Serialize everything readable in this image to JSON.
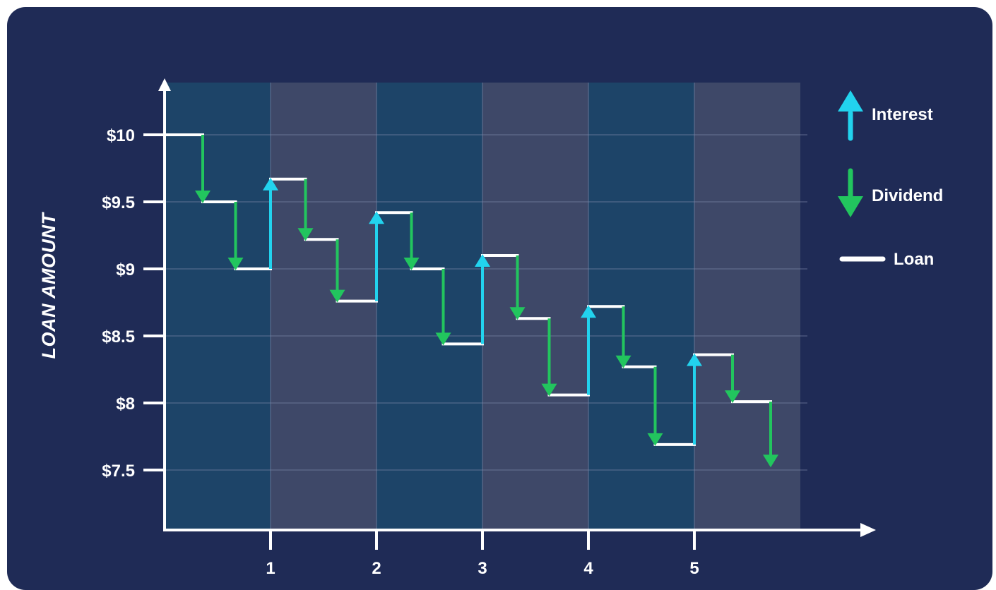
{
  "chart_data": {
    "type": "line",
    "ylabel": "LOAN AMOUNT",
    "y_ticks": [
      "$10",
      "$9.5",
      "$9",
      "$8.5",
      "$8",
      "$7.5"
    ],
    "y_tick_values": [
      10,
      9.5,
      9,
      8.5,
      8,
      7.5
    ],
    "x_ticks": [
      "1",
      "2",
      "3",
      "4",
      "5"
    ],
    "x_tick_values": [
      1,
      2,
      3,
      4,
      5
    ],
    "xlim": [
      0,
      6
    ],
    "ylim": [
      7.05,
      10.4
    ],
    "grid": true,
    "legend_position": "right",
    "colors": {
      "background": "#1f2b56",
      "band_a": "#1d4468",
      "band_b": "#3e4868",
      "interest": "#22d3ee",
      "dividend": "#22c55e",
      "loan": "#ffffff",
      "axis": "#ffffff",
      "grid": "#7a86a8"
    },
    "legend": [
      {
        "label": "Interest",
        "icon": "arrow-up-icon",
        "color": "#22d3ee"
      },
      {
        "label": "Dividend",
        "icon": "arrow-down-icon",
        "color": "#22c55e"
      },
      {
        "label": "Loan",
        "icon": "line-icon",
        "color": "#ffffff"
      }
    ],
    "series": [
      {
        "name": "Loan",
        "kind": "step",
        "segments": [
          {
            "x0": 0.0,
            "x1": 0.36,
            "y": 10.0
          },
          {
            "x0": 0.36,
            "x1": 0.67,
            "y": 9.5
          },
          {
            "x0": 0.67,
            "x1": 1.0,
            "y": 9.0
          },
          {
            "x0": 1.0,
            "x1": 1.33,
            "y": 9.67
          },
          {
            "x0": 1.33,
            "x1": 1.63,
            "y": 9.22
          },
          {
            "x0": 1.63,
            "x1": 2.0,
            "y": 8.76
          },
          {
            "x0": 2.0,
            "x1": 2.33,
            "y": 9.42
          },
          {
            "x0": 2.33,
            "x1": 2.63,
            "y": 9.0
          },
          {
            "x0": 2.63,
            "x1": 3.0,
            "y": 8.44
          },
          {
            "x0": 3.0,
            "x1": 3.33,
            "y": 9.1
          },
          {
            "x0": 3.33,
            "x1": 3.63,
            "y": 8.63
          },
          {
            "x0": 3.63,
            "x1": 4.0,
            "y": 8.06
          },
          {
            "x0": 4.0,
            "x1": 4.33,
            "y": 8.72
          },
          {
            "x0": 4.33,
            "x1": 4.63,
            "y": 8.27
          },
          {
            "x0": 4.63,
            "x1": 5.0,
            "y": 7.69
          },
          {
            "x0": 5.0,
            "x1": 5.36,
            "y": 8.36
          },
          {
            "x0": 5.36,
            "x1": 5.72,
            "y": 8.01
          }
        ]
      },
      {
        "name": "Interest",
        "kind": "up-arrow",
        "points": [
          {
            "x": 1.0,
            "from": 9.0,
            "to": 9.67
          },
          {
            "x": 2.0,
            "from": 8.76,
            "to": 9.42
          },
          {
            "x": 3.0,
            "from": 8.44,
            "to": 9.1
          },
          {
            "x": 4.0,
            "from": 8.06,
            "to": 8.72
          },
          {
            "x": 5.0,
            "from": 7.69,
            "to": 8.36
          }
        ]
      },
      {
        "name": "Dividend",
        "kind": "down-arrow",
        "points": [
          {
            "x": 0.36,
            "from": 10.0,
            "to": 9.5
          },
          {
            "x": 0.67,
            "from": 9.5,
            "to": 9.0
          },
          {
            "x": 1.33,
            "from": 9.67,
            "to": 9.22
          },
          {
            "x": 1.63,
            "from": 9.22,
            "to": 8.76
          },
          {
            "x": 2.33,
            "from": 9.42,
            "to": 9.0
          },
          {
            "x": 2.63,
            "from": 9.0,
            "to": 8.44
          },
          {
            "x": 3.33,
            "from": 9.1,
            "to": 8.63
          },
          {
            "x": 3.63,
            "from": 8.63,
            "to": 8.06
          },
          {
            "x": 4.33,
            "from": 8.72,
            "to": 8.27
          },
          {
            "x": 4.63,
            "from": 8.27,
            "to": 7.69
          },
          {
            "x": 5.36,
            "from": 8.36,
            "to": 8.01
          },
          {
            "x": 5.72,
            "from": 8.01,
            "to": 7.53
          }
        ]
      }
    ]
  }
}
